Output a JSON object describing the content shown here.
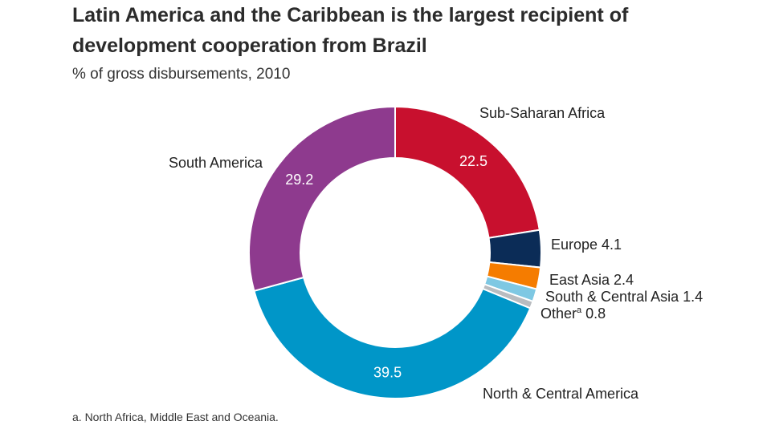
{
  "chart_data": {
    "type": "pie",
    "donut": true,
    "title": "Latin America and the Caribbean is the largest recipient of development cooperation from Brazil",
    "subtitle": "% of gross disbursements, 2010",
    "footnote": "a. North Africa, Middle East and Oceania.",
    "slices": [
      {
        "name": "Sub-Saharan Africa",
        "value": 22.5,
        "value_label": "22.5",
        "color": "#c8102e",
        "inside": true
      },
      {
        "name": "Europe",
        "value": 4.1,
        "value_label": "4.1",
        "color": "#0b2c57",
        "inside": false
      },
      {
        "name": "East Asia",
        "value": 2.4,
        "value_label": "2.4",
        "color": "#f57c00",
        "inside": false
      },
      {
        "name": "South & Central Asia",
        "value": 1.4,
        "value_label": "1.4",
        "color": "#7ec8e3",
        "inside": false
      },
      {
        "name": "Other",
        "superscript": "a",
        "value": 0.8,
        "value_label": "0.8",
        "color": "#b8bcc0",
        "inside": false
      },
      {
        "name": "North & Central America",
        "value": 39.5,
        "value_label": "39.5",
        "color": "#0096c8",
        "inside": true
      },
      {
        "name": "South America",
        "value": 29.2,
        "value_label": "29.2",
        "color": "#8e3a8e",
        "inside": true
      }
    ]
  }
}
